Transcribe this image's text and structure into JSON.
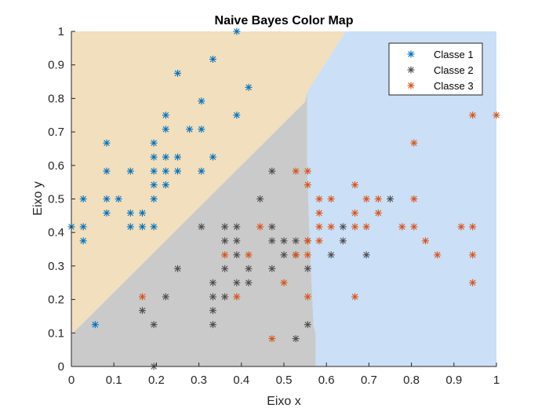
{
  "chart_data": {
    "type": "scatter",
    "title": "Naive Bayes Color Map",
    "xlabel": "Eixo x",
    "ylabel": "Eixo y",
    "xlim": [
      0,
      1
    ],
    "ylim": [
      0,
      1
    ],
    "xticks": [
      "0",
      "0.1",
      "0.2",
      "0.3",
      "0.4",
      "0.5",
      "0.6",
      "0.7",
      "0.8",
      "0.9",
      "1"
    ],
    "yticks": [
      "0",
      "0.1",
      "0.2",
      "0.3",
      "0.4",
      "0.5",
      "0.6",
      "0.7",
      "0.8",
      "0.9",
      "1"
    ],
    "grid": false,
    "legend_position": "top-right",
    "marker": "asterisk",
    "regions": [
      {
        "class": "Classe 1",
        "color": "#f2dfbd",
        "polygon": [
          [
            0,
            0.095
          ],
          [
            0.55,
            0.79
          ],
          [
            0.555,
            0.81
          ],
          [
            0.555,
            0.82
          ],
          [
            0.645,
            1
          ],
          [
            0,
            1
          ]
        ]
      },
      {
        "class": "Classe 2",
        "color": "#cacaca",
        "polygon": [
          [
            0,
            0
          ],
          [
            0.575,
            0
          ],
          [
            0.575,
            0.1
          ],
          [
            0.57,
            0.12
          ],
          [
            0.56,
            0.4
          ],
          [
            0.555,
            0.6
          ],
          [
            0.555,
            0.82
          ],
          [
            0.55,
            0.79
          ],
          [
            0,
            0.095
          ]
        ]
      },
      {
        "class": "Classe 3",
        "color": "#cbdff6",
        "polygon": [
          [
            0.575,
            0
          ],
          [
            1,
            0
          ],
          [
            1,
            1
          ],
          [
            0.645,
            1
          ],
          [
            0.555,
            0.82
          ],
          [
            0.555,
            0.6
          ],
          [
            0.56,
            0.4
          ],
          [
            0.57,
            0.12
          ],
          [
            0.575,
            0.1
          ]
        ]
      }
    ],
    "series": [
      {
        "name": "Classe 1",
        "color": "#0072bd",
        "points": [
          [
            0.389,
            1.0
          ],
          [
            0.333,
            0.917
          ],
          [
            0.25,
            0.875
          ],
          [
            0.417,
            0.833
          ],
          [
            0.306,
            0.792
          ],
          [
            0.222,
            0.75
          ],
          [
            0.389,
            0.75
          ],
          [
            0.222,
            0.708
          ],
          [
            0.278,
            0.708
          ],
          [
            0.306,
            0.708
          ],
          [
            0.083,
            0.667
          ],
          [
            0.194,
            0.667
          ],
          [
            0.194,
            0.625
          ],
          [
            0.222,
            0.625
          ],
          [
            0.25,
            0.625
          ],
          [
            0.333,
            0.625
          ],
          [
            0.083,
            0.583
          ],
          [
            0.139,
            0.583
          ],
          [
            0.194,
            0.583
          ],
          [
            0.222,
            0.583
          ],
          [
            0.25,
            0.583
          ],
          [
            0.306,
            0.583
          ],
          [
            0.194,
            0.542
          ],
          [
            0.222,
            0.542
          ],
          [
            0.028,
            0.5
          ],
          [
            0.083,
            0.5
          ],
          [
            0.111,
            0.5
          ],
          [
            0.194,
            0.5
          ],
          [
            0.083,
            0.458
          ],
          [
            0.139,
            0.458
          ],
          [
            0.167,
            0.458
          ],
          [
            0.0,
            0.417
          ],
          [
            0.028,
            0.417
          ],
          [
            0.139,
            0.417
          ],
          [
            0.167,
            0.417
          ],
          [
            0.194,
            0.417
          ],
          [
            0.028,
            0.375
          ],
          [
            0.056,
            0.125
          ]
        ]
      },
      {
        "name": "Classe 2",
        "color": "#4d4d4d",
        "points": [
          [
            0.472,
            0.583
          ],
          [
            0.444,
            0.5
          ],
          [
            0.75,
            0.5
          ],
          [
            0.306,
            0.417
          ],
          [
            0.361,
            0.417
          ],
          [
            0.389,
            0.417
          ],
          [
            0.472,
            0.417
          ],
          [
            0.639,
            0.417
          ],
          [
            0.361,
            0.375
          ],
          [
            0.389,
            0.375
          ],
          [
            0.472,
            0.375
          ],
          [
            0.5,
            0.375
          ],
          [
            0.528,
            0.375
          ],
          [
            0.556,
            0.375
          ],
          [
            0.639,
            0.375
          ],
          [
            0.389,
            0.333
          ],
          [
            0.5,
            0.333
          ],
          [
            0.528,
            0.333
          ],
          [
            0.611,
            0.333
          ],
          [
            0.694,
            0.333
          ],
          [
            0.25,
            0.292
          ],
          [
            0.361,
            0.292
          ],
          [
            0.417,
            0.292
          ],
          [
            0.472,
            0.292
          ],
          [
            0.556,
            0.292
          ],
          [
            0.333,
            0.25
          ],
          [
            0.389,
            0.25
          ],
          [
            0.417,
            0.25
          ],
          [
            0.222,
            0.208
          ],
          [
            0.333,
            0.208
          ],
          [
            0.361,
            0.208
          ],
          [
            0.167,
            0.167
          ],
          [
            0.333,
            0.167
          ],
          [
            0.194,
            0.125
          ],
          [
            0.333,
            0.125
          ],
          [
            0.556,
            0.125
          ],
          [
            0.528,
            0.083
          ],
          [
            0.194,
            0.0
          ]
        ]
      },
      {
        "name": "Classe 3",
        "color": "#d95319",
        "points": [
          [
            0.944,
            0.75
          ],
          [
            1.0,
            0.75
          ],
          [
            0.806,
            0.667
          ],
          [
            0.528,
            0.583
          ],
          [
            0.556,
            0.583
          ],
          [
            0.556,
            0.542
          ],
          [
            0.667,
            0.542
          ],
          [
            0.583,
            0.5
          ],
          [
            0.611,
            0.5
          ],
          [
            0.694,
            0.5
          ],
          [
            0.722,
            0.5
          ],
          [
            0.806,
            0.5
          ],
          [
            0.583,
            0.458
          ],
          [
            0.667,
            0.458
          ],
          [
            0.722,
            0.458
          ],
          [
            0.444,
            0.417
          ],
          [
            0.583,
            0.417
          ],
          [
            0.611,
            0.417
          ],
          [
            0.667,
            0.417
          ],
          [
            0.694,
            0.417
          ],
          [
            0.778,
            0.417
          ],
          [
            0.806,
            0.417
          ],
          [
            0.917,
            0.417
          ],
          [
            0.944,
            0.417
          ],
          [
            0.556,
            0.375
          ],
          [
            0.583,
            0.375
          ],
          [
            0.833,
            0.375
          ],
          [
            0.361,
            0.333
          ],
          [
            0.417,
            0.333
          ],
          [
            0.528,
            0.333
          ],
          [
            0.556,
            0.333
          ],
          [
            0.861,
            0.333
          ],
          [
            0.944,
            0.333
          ],
          [
            0.5,
            0.25
          ],
          [
            0.944,
            0.25
          ],
          [
            0.167,
            0.208
          ],
          [
            0.389,
            0.208
          ],
          [
            0.556,
            0.208
          ],
          [
            0.667,
            0.208
          ],
          [
            0.472,
            0.083
          ]
        ]
      }
    ]
  }
}
